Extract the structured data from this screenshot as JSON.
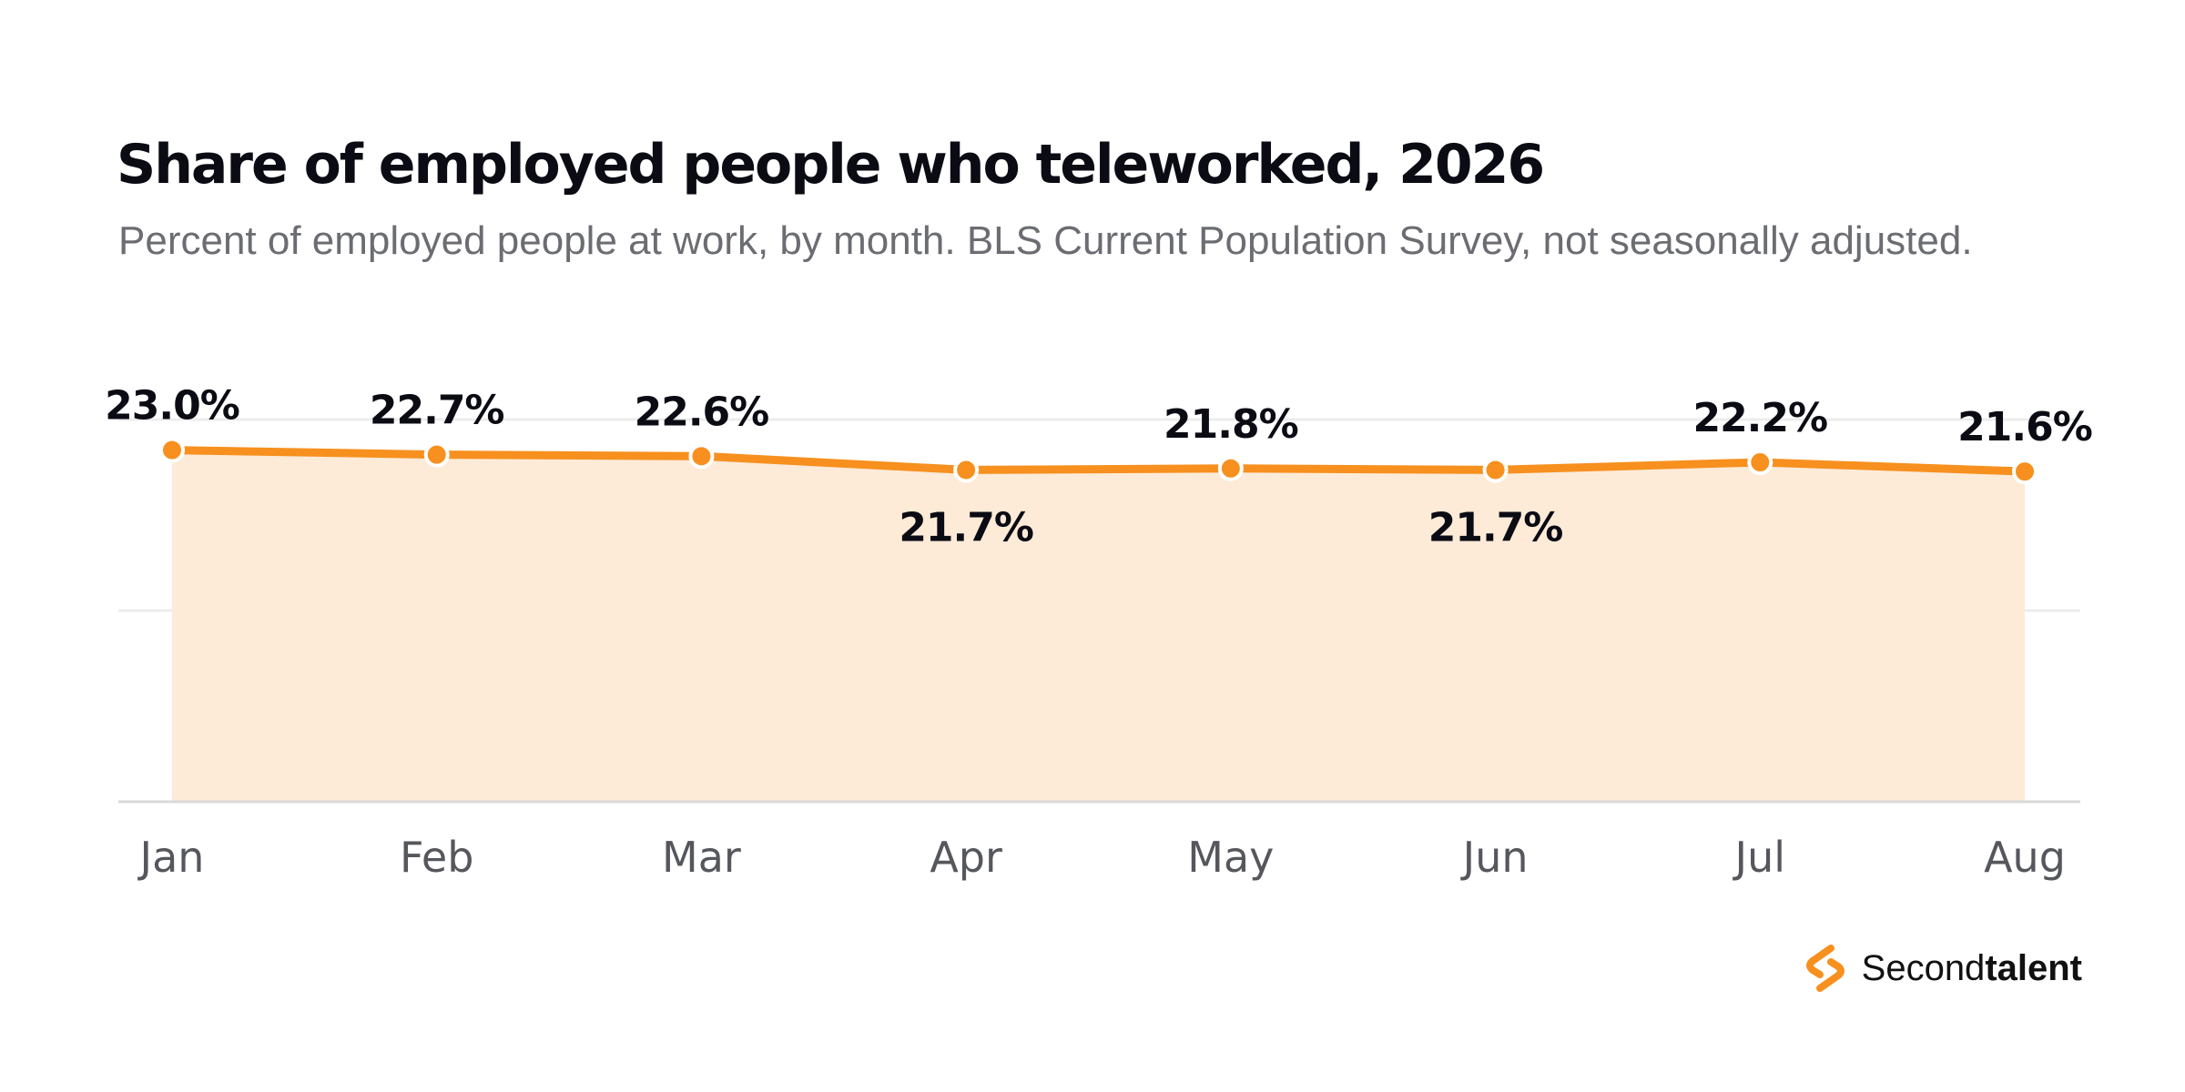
{
  "title": "Share of employed people who teleworked, 2026",
  "subtitle": "Percent of employed people at work, by month. BLS Current Population Survey, not seasonally adjusted.",
  "brand": {
    "logo": "secondtalent-logo-icon",
    "name_light": "Second",
    "name_bold": "talent"
  },
  "colors": {
    "line": "#f7901e",
    "area": "#fdebd8",
    "grid": "#ececec",
    "axis": "#d9d9d9"
  },
  "chart_data": {
    "type": "area",
    "title": "Share of employed people who teleworked, 2026",
    "subtitle": "Percent of employed people at work, by month. BLS Current Population Survey, not seasonally adjusted.",
    "xlabel": "",
    "ylabel": "",
    "categories": [
      "Jan",
      "Feb",
      "Mar",
      "Apr",
      "May",
      "Jun",
      "Jul",
      "Aug"
    ],
    "values": [
      23.0,
      22.7,
      22.6,
      21.7,
      21.8,
      21.7,
      22.2,
      21.6
    ],
    "value_labels": [
      "23.0%",
      "22.7%",
      "22.6%",
      "21.7%",
      "21.8%",
      "21.7%",
      "22.2%",
      "21.6%"
    ],
    "label_positions": [
      "above",
      "above",
      "above",
      "below",
      "above",
      "below",
      "above",
      "above"
    ],
    "ylim": [
      0,
      25
    ],
    "gridlines": [
      12.5,
      25
    ],
    "grid": true,
    "y_tick_labels": false,
    "legend": "none"
  }
}
